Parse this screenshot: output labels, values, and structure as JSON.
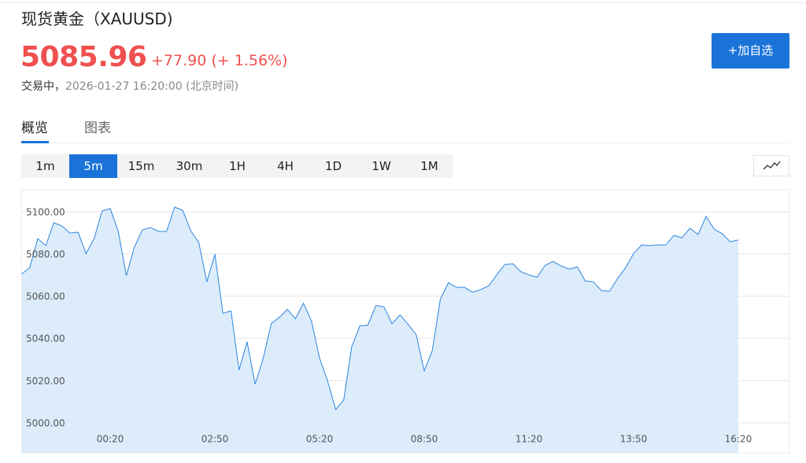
{
  "header": {
    "title": "现货黄金（XAUUSD)",
    "price": "5085.96",
    "change": "+77.90",
    "change_pct": "(+ 1.56%)",
    "status": "交易中，",
    "time": "2026-01-27 16:20:00 (北京时间)",
    "watch_button": "+加自选"
  },
  "tabs": [
    "概览",
    "图表"
  ],
  "active_tab": "概览",
  "intervals": [
    "1m",
    "5m",
    "15m",
    "30m",
    "1H",
    "4H",
    "1D",
    "1W",
    "1M"
  ],
  "active_interval": "5m",
  "chart_data": {
    "type": "area",
    "color": "#2f86dc",
    "fill": "#dcecfb",
    "grid": true,
    "categories": [
      null,
      null,
      null,
      null,
      null,
      null,
      null,
      null,
      null,
      null,
      null,
      "00:20",
      null,
      null,
      null,
      null,
      null,
      null,
      null,
      null,
      null,
      null,
      null,
      null,
      "02:50",
      null,
      null,
      null,
      null,
      null,
      null,
      null,
      null,
      null,
      null,
      null,
      null,
      "05:20",
      null,
      null,
      null,
      null,
      null,
      null,
      null,
      null,
      null,
      null,
      null,
      null,
      "08:50",
      null,
      null,
      null,
      null,
      null,
      null,
      null,
      null,
      null,
      null,
      null,
      null,
      "11:20",
      null,
      null,
      null,
      null,
      null,
      null,
      null,
      null,
      null,
      null,
      null,
      null,
      "13:50",
      null,
      null,
      null,
      null,
      null,
      null,
      null,
      null,
      null,
      null,
      null,
      null,
      "16:20"
    ],
    "values": [
      5070.5,
      5073.5,
      5087.3,
      5084.0,
      5094.8,
      5093.3,
      5089.9,
      5090.3,
      5080.2,
      5087.3,
      5100.4,
      5101.5,
      5090.7,
      5069.8,
      5083.2,
      5091.4,
      5092.5,
      5090.7,
      5090.7,
      5102.2,
      5100.7,
      5091.0,
      5085.4,
      5066.8,
      5079.9,
      5051.9,
      5053.0,
      5025.0,
      5038.4,
      5018.3,
      5030.6,
      5047.0,
      5050.0,
      5053.7,
      5049.3,
      5056.7,
      5048.1,
      5030.6,
      5019.8,
      5006.3,
      5010.8,
      5036.2,
      5045.9,
      5046.3,
      5055.6,
      5054.9,
      5047.0,
      5051.1,
      5046.6,
      5041.8,
      5024.6,
      5034.3,
      5058.6,
      5066.4,
      5064.2,
      5064.2,
      5061.9,
      5063.1,
      5064.9,
      5070.1,
      5075.0,
      5075.4,
      5071.6,
      5070.1,
      5069.0,
      5074.6,
      5076.5,
      5074.3,
      5072.8,
      5073.9,
      5067.2,
      5066.8,
      5062.7,
      5062.3,
      5068.3,
      5073.5,
      5080.2,
      5084.3,
      5084.0,
      5084.3,
      5084.3,
      5088.8,
      5087.7,
      5092.2,
      5089.2,
      5097.8,
      5091.8,
      5089.6,
      5085.8,
      5086.6
    ],
    "ylim": [
      4985.8,
      5110.8
    ],
    "yticks": [
      {
        "value": 5000,
        "label": "5000.00"
      },
      {
        "value": 5020,
        "label": "5020.00"
      },
      {
        "value": 5040,
        "label": "5040.00"
      },
      {
        "value": 5060,
        "label": "5060.00"
      },
      {
        "value": 5080,
        "label": "5080.00"
      },
      {
        "value": 5100,
        "label": "5100.00"
      }
    ]
  }
}
